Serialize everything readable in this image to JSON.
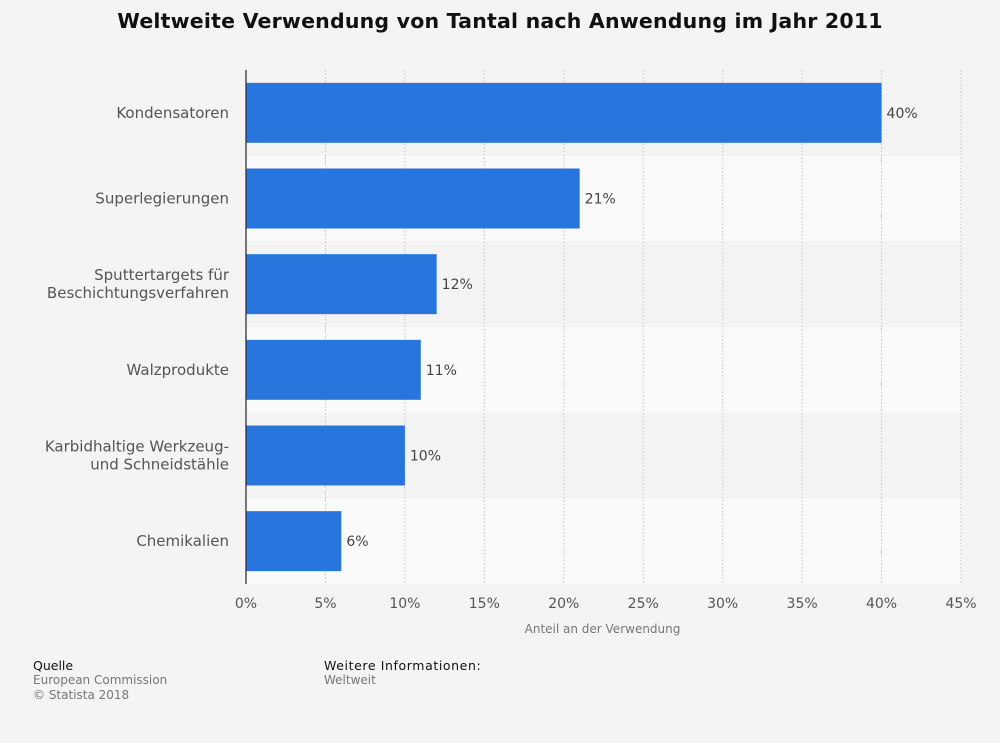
{
  "chart_data": {
    "type": "bar",
    "orientation": "horizontal",
    "title": "Weltweite Verwendung von Tantal nach Anwendung im Jahr 2011",
    "categories": [
      [
        "Kondensatoren"
      ],
      [
        "Superlegierungen"
      ],
      [
        "Sputtertargets für",
        "Beschichtungsverfahren"
      ],
      [
        "Walzprodukte"
      ],
      [
        "Karbidhaltige Werkzeug-",
        "und Schneidstähle"
      ],
      [
        "Chemikalien"
      ]
    ],
    "values": [
      40,
      21,
      12,
      11,
      10,
      6
    ],
    "value_labels": [
      "40%",
      "21%",
      "12%",
      "11%",
      "10%",
      "6%"
    ],
    "xlim": [
      0,
      45
    ],
    "x_ticks": [
      0,
      5,
      10,
      15,
      20,
      25,
      30,
      35,
      40,
      45
    ],
    "x_tick_labels": [
      "0%",
      "5%",
      "10%",
      "15%",
      "20%",
      "25%",
      "30%",
      "35%",
      "40%",
      "45%"
    ],
    "xlabel": "Anteil an der Verwendung",
    "ylabel": "",
    "grid": "vertical-dotted",
    "bar_color": "#2876dd",
    "band_colors": [
      "#f4f4f4",
      "#fafafa"
    ]
  },
  "footer": {
    "source_heading": "Quelle",
    "source_lines": [
      "European Commission",
      "© Statista 2018"
    ],
    "info_heading": "Weitere Informationen:",
    "info_lines": [
      "Weltweit"
    ]
  }
}
